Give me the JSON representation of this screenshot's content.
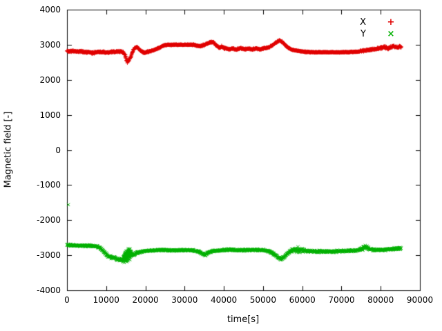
{
  "chart_data": {
    "type": "scatter",
    "title": "",
    "xlabel": "time[s]",
    "ylabel": "Magnetic field [-]",
    "xlim": [
      0,
      90000
    ],
    "ylim": [
      -4000,
      4000
    ],
    "xticks": [
      0,
      10000,
      20000,
      30000,
      40000,
      50000,
      60000,
      70000,
      80000,
      90000
    ],
    "yticks": [
      -4000,
      -3000,
      -2000,
      -1000,
      0,
      1000,
      2000,
      3000,
      4000
    ],
    "grid": false,
    "legend_position": "top-right-inside",
    "sample_step": 55,
    "series": [
      {
        "name": "X",
        "marker_char": "+",
        "color": "#e00000",
        "seed": 42,
        "t_range": [
          0,
          85300
        ],
        "baseline": [
          [
            0,
            2820
          ],
          [
            3000,
            2810
          ],
          [
            5000,
            2790
          ],
          [
            6500,
            2765
          ],
          [
            8000,
            2800
          ],
          [
            10000,
            2775
          ],
          [
            12000,
            2800
          ],
          [
            14000,
            2810
          ],
          [
            14800,
            2710
          ],
          [
            15300,
            2520
          ],
          [
            15900,
            2560
          ],
          [
            16400,
            2700
          ],
          [
            17100,
            2890
          ],
          [
            17900,
            2930
          ],
          [
            18700,
            2840
          ],
          [
            19600,
            2765
          ],
          [
            20600,
            2800
          ],
          [
            21600,
            2830
          ],
          [
            22600,
            2865
          ],
          [
            23600,
            2920
          ],
          [
            24600,
            2975
          ],
          [
            25600,
            3000
          ],
          [
            30000,
            3000
          ],
          [
            32500,
            3000
          ],
          [
            33500,
            2960
          ],
          [
            34500,
            2975
          ],
          [
            35500,
            3020
          ],
          [
            36500,
            3065
          ],
          [
            37200,
            3090
          ],
          [
            38000,
            2990
          ],
          [
            38800,
            2905
          ],
          [
            39500,
            2945
          ],
          [
            40300,
            2900
          ],
          [
            41200,
            2875
          ],
          [
            42200,
            2890
          ],
          [
            43200,
            2865
          ],
          [
            44200,
            2900
          ],
          [
            45200,
            2875
          ],
          [
            46200,
            2890
          ],
          [
            47200,
            2870
          ],
          [
            48200,
            2890
          ],
          [
            49200,
            2870
          ],
          [
            50200,
            2895
          ],
          [
            51200,
            2915
          ],
          [
            52200,
            2965
          ],
          [
            53200,
            3055
          ],
          [
            54200,
            3120
          ],
          [
            54900,
            3085
          ],
          [
            55700,
            2985
          ],
          [
            56500,
            2905
          ],
          [
            57300,
            2860
          ],
          [
            58200,
            2840
          ],
          [
            59200,
            2820
          ],
          [
            60500,
            2800
          ],
          [
            62000,
            2790
          ],
          [
            64000,
            2785
          ],
          [
            68000,
            2785
          ],
          [
            72000,
            2790
          ],
          [
            74000,
            2800
          ],
          [
            75500,
            2830
          ],
          [
            77000,
            2850
          ],
          [
            78500,
            2875
          ],
          [
            80000,
            2910
          ],
          [
            81000,
            2930
          ],
          [
            81800,
            2895
          ],
          [
            82600,
            2930
          ],
          [
            83400,
            2960
          ],
          [
            84200,
            2930
          ],
          [
            85300,
            2950
          ]
        ],
        "spread": [
          [
            0,
            35
          ],
          [
            14000,
            35
          ],
          [
            14800,
            70
          ],
          [
            15300,
            90
          ],
          [
            16300,
            60
          ],
          [
            17000,
            35
          ],
          [
            25000,
            22
          ],
          [
            33000,
            22
          ],
          [
            34000,
            30
          ],
          [
            40000,
            40
          ],
          [
            41000,
            30
          ],
          [
            52000,
            30
          ],
          [
            56000,
            35
          ],
          [
            58000,
            20
          ],
          [
            74000,
            20
          ],
          [
            76000,
            40
          ],
          [
            80000,
            45
          ],
          [
            85300,
            45
          ]
        ],
        "outliers": []
      },
      {
        "name": "Y",
        "marker_char": "×",
        "color": "#00b000",
        "seed": 1337,
        "t_range": [
          0,
          85200
        ],
        "baseline": [
          [
            0,
            -2700
          ],
          [
            2000,
            -2720
          ],
          [
            4000,
            -2730
          ],
          [
            6000,
            -2725
          ],
          [
            8000,
            -2760
          ],
          [
            9000,
            -2845
          ],
          [
            9800,
            -2960
          ],
          [
            10600,
            -3030
          ],
          [
            11600,
            -3060
          ],
          [
            12600,
            -3105
          ],
          [
            13600,
            -3140
          ],
          [
            14400,
            -3110
          ],
          [
            15000,
            -3000
          ],
          [
            15700,
            -2950
          ],
          [
            16300,
            -2980
          ],
          [
            17100,
            -2965
          ],
          [
            18100,
            -2920
          ],
          [
            19100,
            -2890
          ],
          [
            20100,
            -2870
          ],
          [
            22000,
            -2860
          ],
          [
            24000,
            -2850
          ],
          [
            26000,
            -2855
          ],
          [
            28000,
            -2860
          ],
          [
            30000,
            -2850
          ],
          [
            32000,
            -2860
          ],
          [
            33500,
            -2900
          ],
          [
            34500,
            -2950
          ],
          [
            35200,
            -2990
          ],
          [
            36000,
            -2930
          ],
          [
            37000,
            -2880
          ],
          [
            38000,
            -2868
          ],
          [
            40000,
            -2850
          ],
          [
            42000,
            -2840
          ],
          [
            44000,
            -2860
          ],
          [
            46000,
            -2850
          ],
          [
            48000,
            -2846
          ],
          [
            50000,
            -2856
          ],
          [
            51500,
            -2880
          ],
          [
            52500,
            -2950
          ],
          [
            53500,
            -3030
          ],
          [
            54500,
            -3100
          ],
          [
            55300,
            -3065
          ],
          [
            56100,
            -2960
          ],
          [
            57000,
            -2880
          ],
          [
            58000,
            -2842
          ],
          [
            59000,
            -2850
          ],
          [
            60000,
            -2862
          ],
          [
            61000,
            -2880
          ],
          [
            62000,
            -2886
          ],
          [
            64000,
            -2890
          ],
          [
            66000,
            -2896
          ],
          [
            68000,
            -2890
          ],
          [
            70000,
            -2880
          ],
          [
            72000,
            -2872
          ],
          [
            74000,
            -2862
          ],
          [
            75500,
            -2790
          ],
          [
            76300,
            -2762
          ],
          [
            77100,
            -2820
          ],
          [
            78100,
            -2850
          ],
          [
            80000,
            -2850
          ],
          [
            82000,
            -2830
          ],
          [
            84000,
            -2816
          ],
          [
            85200,
            -2800
          ]
        ],
        "spread": [
          [
            0,
            38
          ],
          [
            8000,
            38
          ],
          [
            9500,
            55
          ],
          [
            14000,
            60
          ],
          [
            14700,
            180
          ],
          [
            15200,
            260
          ],
          [
            16000,
            220
          ],
          [
            16600,
            70
          ],
          [
            17500,
            45
          ],
          [
            20000,
            35
          ],
          [
            33000,
            35
          ],
          [
            34500,
            50
          ],
          [
            36000,
            35
          ],
          [
            52000,
            40
          ],
          [
            54500,
            55
          ],
          [
            56500,
            40
          ],
          [
            57800,
            90
          ],
          [
            58600,
            110
          ],
          [
            60000,
            100
          ],
          [
            60800,
            45
          ],
          [
            75000,
            40
          ],
          [
            75800,
            110
          ],
          [
            76600,
            90
          ],
          [
            77400,
            45
          ],
          [
            85200,
            40
          ]
        ],
        "outliers": [
          [
            350,
            -1560
          ]
        ]
      }
    ]
  }
}
